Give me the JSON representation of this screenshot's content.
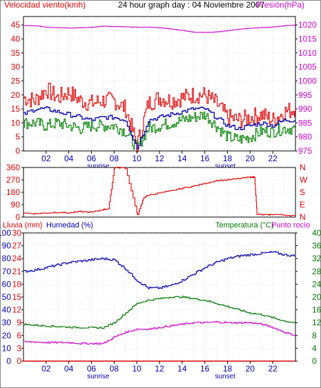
{
  "colors": {
    "wind": "#dd0000",
    "gust_green": "#008000",
    "avg_blue": "#0000aa",
    "pressure": "#cc00cc",
    "humidity": "#0000aa",
    "temperature": "#007700",
    "dewpoint": "#cc00cc",
    "rain": "#dd0000",
    "frame": "#000000",
    "grid": "#cfcfcf"
  },
  "chart_data": [
    {
      "type": "line",
      "panel": "wind-pressure",
      "title": "24 hour graph day : 04 Noviembre 2007",
      "ylabel_left": "Velocidad viento(kmh)",
      "ylabel_right": "Presión(hPa)",
      "x_ticks": [
        "02",
        "04",
        "06",
        "08",
        "10",
        "12",
        "14",
        "16",
        "18",
        "20",
        "22"
      ],
      "x_markers": [
        "sunrise",
        "sunset"
      ],
      "y_left_ticks": [
        0,
        5,
        10,
        15,
        20,
        25,
        30,
        35,
        40,
        45
      ],
      "y_right_ticks": [
        975,
        980,
        985,
        990,
        995,
        1000,
        1005,
        1010,
        1015,
        1020
      ],
      "ylim_left": [
        0,
        48
      ],
      "ylim_right": [
        975,
        1023
      ],
      "grid": true,
      "x": [
        0,
        1,
        2,
        3,
        4,
        5,
        6,
        7,
        8,
        9,
        10,
        11,
        12,
        13,
        14,
        15,
        16,
        17,
        18,
        19,
        20,
        21,
        22,
        23,
        24
      ],
      "series": [
        {
          "id": "gust",
          "color": "#dd0000",
          "values": [
            19,
            18,
            22,
            19,
            21,
            18,
            17,
            18,
            18,
            15,
            2,
            17,
            19,
            18,
            19,
            20,
            20,
            17,
            12,
            11,
            12,
            13,
            11,
            14,
            15
          ]
        },
        {
          "id": "max",
          "color": "#008000",
          "values": [
            10,
            10,
            9,
            10,
            9,
            8,
            9,
            9,
            9,
            7,
            1,
            8,
            9,
            10,
            11,
            12,
            13,
            9,
            5,
            4,
            5,
            7,
            7,
            8,
            8
          ]
        },
        {
          "id": "avg",
          "color": "#0000aa",
          "values": [
            13,
            15,
            15,
            14,
            13,
            12,
            11,
            12,
            12,
            11,
            1,
            11,
            12,
            13,
            14,
            15,
            15,
            12,
            9,
            8,
            9,
            10,
            9,
            11,
            11
          ]
        },
        {
          "id": "pressure",
          "color": "#cc00cc",
          "values": [
            1019.8,
            1019.7,
            1019.2,
            1019.0,
            1018.9,
            1019.0,
            1019.2,
            1019.5,
            1019.4,
            1019.3,
            1019.2,
            1019.2,
            1019.0,
            1018.5,
            1018.0,
            1017.4,
            1017.3,
            1017.5,
            1018.0,
            1018.5,
            1018.8,
            1019.1,
            1019.3,
            1019.7,
            1020.0
          ]
        }
      ]
    },
    {
      "type": "line",
      "panel": "wind-direction",
      "y_left_ticks": [
        0,
        90,
        180,
        270,
        360
      ],
      "y_right_labels": [
        "N",
        "W",
        "S",
        "E",
        "N"
      ],
      "ylim": [
        0,
        360
      ],
      "grid": true,
      "x": [
        0,
        1,
        2,
        3,
        4,
        5,
        6,
        7,
        7.5,
        8,
        8.1,
        9,
        10,
        10.1,
        10.6,
        11,
        12,
        13,
        14,
        15,
        16,
        17,
        18,
        19,
        20,
        20.4,
        20.6,
        21.5,
        22,
        23,
        24
      ],
      "series": [
        {
          "id": "direction",
          "color": "#dd0000",
          "values": [
            30,
            25,
            30,
            35,
            30,
            40,
            35,
            55,
            60,
            350,
            360,
            355,
            30,
            20,
            140,
            160,
            175,
            190,
            210,
            225,
            245,
            265,
            270,
            280,
            290,
            290,
            20,
            15,
            20,
            15,
            10
          ]
        }
      ]
    },
    {
      "type": "line",
      "panel": "rain-humidity-temp",
      "ylabel_left_1": "Lluvia (mm)",
      "ylabel_left_2": "Humedad (%)",
      "ylabel_right_1": "Temperatura (°C)",
      "ylabel_right_2": "Punto rocío",
      "x_ticks": [
        "02",
        "04",
        "06",
        "08",
        "10",
        "12",
        "14",
        "16",
        "18",
        "20",
        "22"
      ],
      "x_markers": [
        "sunrise",
        "sunset"
      ],
      "y_left_rain_ticks": [
        0,
        3,
        6,
        9,
        12,
        15,
        18,
        21,
        24,
        27,
        30
      ],
      "y_left_hum_ticks": [
        0,
        10,
        20,
        30,
        40,
        50,
        60,
        70,
        80,
        90,
        100
      ],
      "y_right_ticks": [
        0,
        4,
        8,
        12,
        16,
        20,
        24,
        28,
        32,
        36,
        40
      ],
      "ylim_rain": [
        0,
        30
      ],
      "ylim_humidity": [
        0,
        100
      ],
      "ylim_temp": [
        0,
        40
      ],
      "grid": true,
      "x": [
        0,
        1,
        2,
        3,
        4,
        5,
        6,
        7,
        8,
        9,
        10,
        11,
        12,
        13,
        14,
        15,
        16,
        17,
        18,
        19,
        20,
        21,
        22,
        23,
        24
      ],
      "series": [
        {
          "id": "humidity",
          "color": "#0000aa",
          "values": [
            70,
            71,
            73,
            75,
            77,
            78,
            79,
            80,
            79,
            72,
            63,
            57,
            57,
            59,
            63,
            68,
            73,
            77,
            80,
            82,
            83,
            84,
            85,
            83,
            82
          ]
        },
        {
          "id": "temperature",
          "color": "#007700",
          "values": [
            11.5,
            11.2,
            11,
            10.8,
            10.6,
            10.5,
            10.4,
            10.4,
            12,
            15,
            18,
            19,
            19.5,
            20,
            20,
            19.5,
            19,
            18,
            17,
            16,
            15,
            14.5,
            13.5,
            12.5,
            12
          ]
        },
        {
          "id": "dewpoint",
          "color": "#cc00cc",
          "values": [
            6,
            6,
            5.8,
            5.8,
            5.8,
            5.5,
            5.5,
            5.5,
            7.5,
            9,
            10,
            10,
            10.5,
            11,
            11.5,
            12,
            12,
            12.2,
            12,
            12,
            12,
            11.5,
            10.5,
            9,
            8
          ]
        },
        {
          "id": "rain",
          "color": "#dd0000",
          "values": [
            0,
            0,
            0,
            0,
            0,
            0,
            0,
            0,
            0,
            0,
            0,
            0,
            0,
            0,
            0,
            0,
            0,
            0,
            0,
            0,
            0,
            0,
            0,
            0,
            0
          ]
        }
      ]
    }
  ]
}
